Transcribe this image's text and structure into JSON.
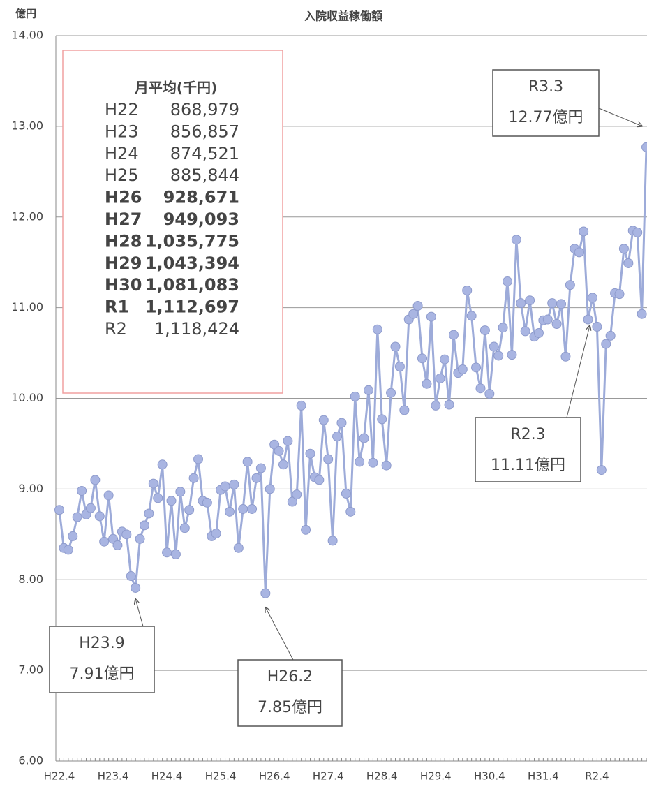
{
  "chart_data": {
    "type": "line",
    "title": "入院収益稼働額",
    "y_label": "億円",
    "categories": [
      "H22.4",
      null,
      null,
      null,
      null,
      null,
      null,
      null,
      null,
      null,
      null,
      null,
      "H23.4",
      null,
      null,
      null,
      null,
      null,
      null,
      null,
      null,
      null,
      null,
      null,
      "H24.4",
      null,
      null,
      null,
      null,
      null,
      null,
      null,
      null,
      null,
      null,
      null,
      "H25.4",
      null,
      null,
      null,
      null,
      null,
      null,
      null,
      null,
      null,
      null,
      null,
      "H26.4",
      null,
      null,
      null,
      null,
      null,
      null,
      null,
      null,
      null,
      null,
      null,
      "H27.4",
      null,
      null,
      null,
      null,
      null,
      null,
      null,
      null,
      null,
      null,
      null,
      "H28.4",
      null,
      null,
      null,
      null,
      null,
      null,
      null,
      null,
      null,
      null,
      null,
      "H29.4",
      null,
      null,
      null,
      null,
      null,
      null,
      null,
      null,
      null,
      null,
      null,
      "H30.4",
      null,
      null,
      null,
      null,
      null,
      null,
      null,
      null,
      null,
      null,
      null,
      "H31.4",
      null,
      null,
      null,
      null,
      null,
      null,
      null,
      null,
      null,
      null,
      null,
      "R2.4",
      null,
      null,
      null,
      null,
      null,
      null,
      null,
      null,
      null,
      null,
      null
    ],
    "series": [
      {
        "name": "入院収益稼働額",
        "color": "#9dabd9",
        "values": [
          8.77,
          8.35,
          8.33,
          8.48,
          8.69,
          8.98,
          8.72,
          8.79,
          9.1,
          8.7,
          8.42,
          8.93,
          8.45,
          8.38,
          8.53,
          8.5,
          8.04,
          7.91,
          8.45,
          8.6,
          8.73,
          9.06,
          8.9,
          9.27,
          8.3,
          8.87,
          8.28,
          8.97,
          8.57,
          8.77,
          9.12,
          9.33,
          8.87,
          8.85,
          8.48,
          8.51,
          8.99,
          9.03,
          8.75,
          9.05,
          8.35,
          8.78,
          9.3,
          8.78,
          9.12,
          9.23,
          7.85,
          9.0,
          9.49,
          9.42,
          9.27,
          9.53,
          8.86,
          8.94,
          9.92,
          8.55,
          9.39,
          9.13,
          9.1,
          9.76,
          9.33,
          8.43,
          9.58,
          9.73,
          8.95,
          8.75,
          10.02,
          9.3,
          9.56,
          10.09,
          9.29,
          10.76,
          9.77,
          9.26,
          10.06,
          10.57,
          10.35,
          9.87,
          10.87,
          10.93,
          11.02,
          10.44,
          10.16,
          10.9,
          9.92,
          10.22,
          10.43,
          9.93,
          10.7,
          10.28,
          10.32,
          11.19,
          10.91,
          10.34,
          10.11,
          10.75,
          10.05,
          10.57,
          10.47,
          10.78,
          11.29,
          10.48,
          11.75,
          11.05,
          10.74,
          11.08,
          10.68,
          10.72,
          10.86,
          10.87,
          11.05,
          10.82,
          11.04,
          10.46,
          11.25,
          11.65,
          11.61,
          11.84,
          10.87,
          11.11,
          10.79,
          9.21,
          10.6,
          10.69,
          11.16,
          11.15,
          11.65,
          11.49,
          11.85,
          11.83,
          10.93,
          12.77
        ]
      }
    ],
    "ylim": [
      6,
      14
    ],
    "yticks": [
      {
        "value": 6,
        "label": "6.00"
      },
      {
        "value": 7,
        "label": "7.00"
      },
      {
        "value": 8,
        "label": "8.00"
      },
      {
        "value": 9,
        "label": "9.00"
      },
      {
        "value": 10,
        "label": "10.00"
      },
      {
        "value": 11,
        "label": "11.00"
      },
      {
        "value": 12,
        "label": "12.00"
      },
      {
        "value": 13,
        "label": "13.00"
      },
      {
        "value": 14,
        "label": "14.00"
      }
    ],
    "grid": true,
    "annotations": [
      {
        "index": 131,
        "lines": [
          "R3.3",
          "12.77億円"
        ]
      },
      {
        "index": 119,
        "lines": [
          "R2.3",
          "11.11億円"
        ]
      },
      {
        "index": 17,
        "lines": [
          "H23.9",
          "7.91億円"
        ]
      },
      {
        "index": 46,
        "lines": [
          "H26.2",
          "7.85億円"
        ]
      }
    ],
    "summary": {
      "title": "月平均(千円)",
      "rows": [
        {
          "label": "H22",
          "value": "868,979",
          "color": "#f0a6a6",
          "bold": false
        },
        {
          "label": "H23",
          "value": "856,857",
          "color": "#f0a6a6",
          "bold": false
        },
        {
          "label": "H24",
          "value": "874,521",
          "color": "#f0a6a6",
          "bold": false
        },
        {
          "label": "H25",
          "value": "885,844",
          "color": "#f0a6a6",
          "bold": false
        },
        {
          "label": "H26",
          "value": "928,671",
          "color": "#555555",
          "bold": true
        },
        {
          "label": "H27",
          "value": "949,093",
          "color": "#555555",
          "bold": true
        },
        {
          "label": "H28",
          "value": "1,035,775",
          "color": "#555555",
          "bold": true
        },
        {
          "label": "H29",
          "value": "1,043,394",
          "color": "#555555",
          "bold": true
        },
        {
          "label": "H30",
          "value": "1,081,083",
          "color": "#555555",
          "bold": true
        },
        {
          "label": "R1",
          "value": "1,112,697",
          "color": "#555555",
          "bold": true
        },
        {
          "label": "R2",
          "value": "1,118,424",
          "color": "#777777",
          "bold": false
        }
      ]
    }
  }
}
